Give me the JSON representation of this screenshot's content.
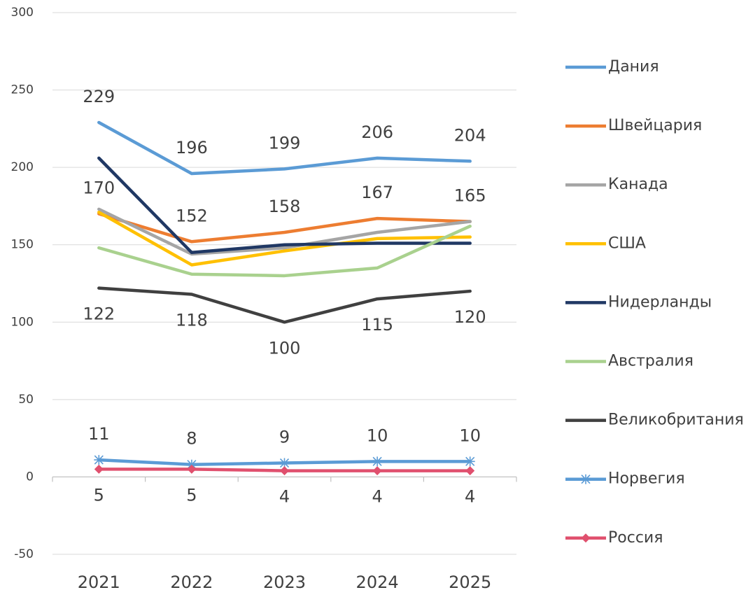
{
  "chart_data": {
    "type": "line",
    "categories": [
      "2021",
      "2022",
      "2023",
      "2024",
      "2025"
    ],
    "series": [
      {
        "name": "Дания",
        "color": "#5b9bd5",
        "values": [
          229,
          196,
          199,
          206,
          204
        ],
        "label_position": "above"
      },
      {
        "name": "Швейцария",
        "color": "#ed7d31",
        "values": [
          170,
          152,
          158,
          167,
          165
        ],
        "label_position": "above"
      },
      {
        "name": "Канада",
        "color": "#a5a5a5",
        "values": [
          173,
          144,
          148,
          158,
          165
        ]
      },
      {
        "name": "США",
        "color": "#ffc000",
        "values": [
          171,
          137,
          146,
          154,
          155
        ]
      },
      {
        "name": "Нидерланды",
        "color": "#203864",
        "values": [
          206,
          145,
          150,
          151,
          151
        ]
      },
      {
        "name": "Австралия",
        "color": "#a9d18e",
        "values": [
          148,
          131,
          130,
          135,
          162
        ]
      },
      {
        "name": "Великобритания",
        "color": "#404040",
        "values": [
          122,
          118,
          100,
          115,
          120
        ],
        "label_position": "below"
      },
      {
        "name": "Норвегия",
        "color": "#5b9bd5",
        "values": [
          11,
          8,
          9,
          10,
          10
        ],
        "label_position": "above",
        "marker": "star"
      },
      {
        "name": "Россия",
        "color": "#e0506e",
        "values": [
          5,
          5,
          4,
          4,
          4
        ],
        "label_position": "below",
        "marker": "diamond"
      }
    ],
    "ylim": [
      -50,
      300
    ],
    "yticks": [
      -50,
      0,
      50,
      100,
      150,
      200,
      250,
      300
    ],
    "grid": true,
    "legend": "right"
  }
}
